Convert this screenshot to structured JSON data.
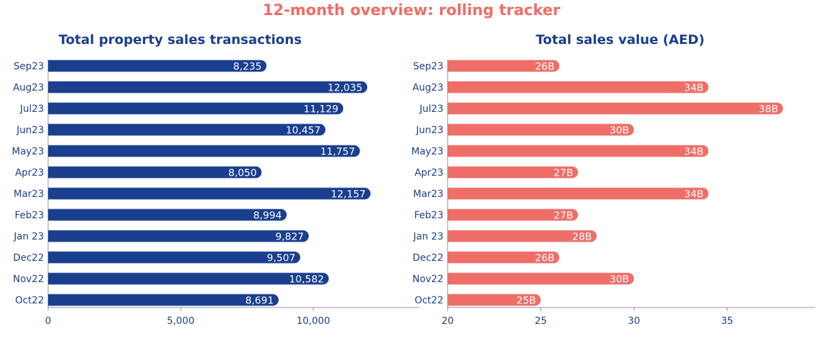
{
  "page_title": "12-month overview: rolling tracker",
  "chart_data": [
    {
      "type": "bar",
      "orientation": "horizontal",
      "title": "Total property sales transactions",
      "color": "#1b3f8f",
      "title_color": "#1b3f8f",
      "categories": [
        "Sep23",
        "Aug23",
        "Jul23",
        "Jun23",
        "May23",
        "Apr23",
        "Mar23",
        "Feb23",
        "Jan 23",
        "Dec22",
        "Nov22",
        "Oct22"
      ],
      "values": [
        8235,
        12035,
        11129,
        10457,
        11757,
        8050,
        12157,
        8994,
        9827,
        9507,
        10582,
        8691
      ],
      "data_labels": [
        "8,235",
        "12,035",
        "11,129",
        "10,457",
        "11,757",
        "8,050",
        "12,157",
        "8,994",
        "9,827",
        "9,507",
        "10,582",
        "8,691"
      ],
      "xlim": [
        0,
        14000
      ],
      "xticks": [
        0,
        5000,
        10000
      ],
      "xtick_labels": [
        "0",
        "5,000",
        "10,000"
      ],
      "grid": false
    },
    {
      "type": "bar",
      "orientation": "horizontal",
      "title": "Total sales value (AED)",
      "color": "#ef6e68",
      "title_color": "#1b3f8f",
      "categories": [
        "Sep23",
        "Aug23",
        "Jul23",
        "Jun23",
        "May23",
        "Apr23",
        "Mar23",
        "Feb23",
        "Jan 23",
        "Dec22",
        "Nov22",
        "Oct22"
      ],
      "values": [
        26,
        34,
        38,
        30,
        34,
        27,
        34,
        27,
        28,
        26,
        30,
        25
      ],
      "data_labels": [
        "26B",
        "34B",
        "38B",
        "30B",
        "34B",
        "27B",
        "34B",
        "27B",
        "28B",
        "26B",
        "30B",
        "25B"
      ],
      "xlim": [
        20,
        40
      ],
      "xticks": [
        20,
        25,
        30,
        35
      ],
      "xtick_labels": [
        "20",
        "25",
        "30",
        "35"
      ],
      "grid": false
    }
  ]
}
